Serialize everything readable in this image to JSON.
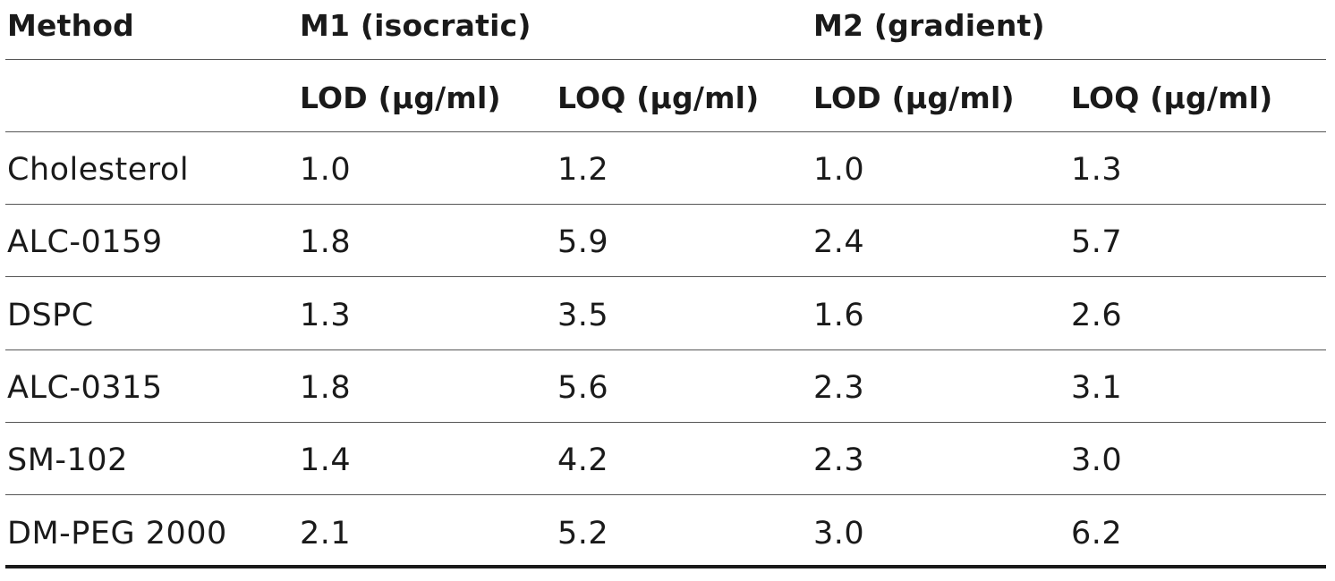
{
  "table": {
    "header_row1": {
      "method_label": "Method",
      "group1": "M1 (isocratic)",
      "group2": "M2 (gradient)"
    },
    "header_row2": {
      "m1_lod": "LOD (µg/ml)",
      "m1_loq": "LOQ (µg/ml)",
      "m2_lod": "LOD (µg/ml)",
      "m2_loq": "LOQ (µg/ml)"
    },
    "rows": [
      {
        "name": "Cholesterol",
        "m1_lod": "1.0",
        "m1_loq": "1.2",
        "m2_lod": "1.0",
        "m2_loq": "1.3"
      },
      {
        "name": "ALC-0159",
        "m1_lod": "1.8",
        "m1_loq": "5.9",
        "m2_lod": "2.4",
        "m2_loq": "5.7"
      },
      {
        "name": "DSPC",
        "m1_lod": "1.3",
        "m1_loq": "3.5",
        "m2_lod": "1.6",
        "m2_loq": "2.6"
      },
      {
        "name": "ALC-0315",
        "m1_lod": "1.8",
        "m1_loq": "5.6",
        "m2_lod": "2.3",
        "m2_loq": "3.1"
      },
      {
        "name": "SM-102",
        "m1_lod": "1.4",
        "m1_loq": "4.2",
        "m2_lod": "2.3",
        "m2_loq": "3.0"
      },
      {
        "name": "DM-PEG 2000",
        "m1_lod": "2.1",
        "m1_loq": "5.2",
        "m2_lod": "3.0",
        "m2_loq": "6.2"
      }
    ]
  }
}
